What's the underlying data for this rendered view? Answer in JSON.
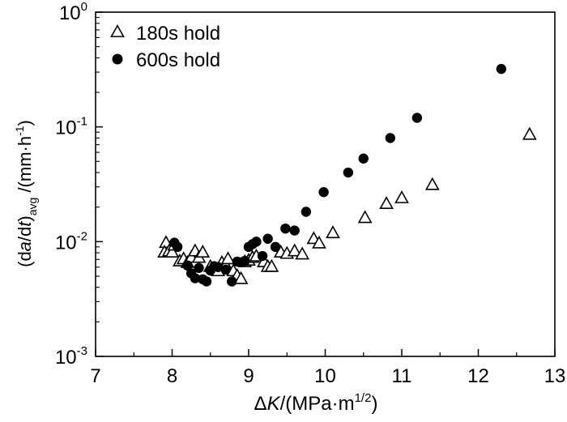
{
  "chart_data": {
    "type": "scatter",
    "x_scale": "linear",
    "y_scale": "log",
    "xlim": [
      7,
      13
    ],
    "ylim": [
      0.001,
      1
    ],
    "x_ticks": [
      7,
      8,
      9,
      10,
      11,
      12,
      13
    ],
    "x_tick_labels": [
      "7",
      "8",
      "9",
      "10",
      "11",
      "12",
      "13"
    ],
    "y_ticks": [
      {
        "value": 1,
        "base": "10",
        "exp": "0"
      },
      {
        "value": 0.1,
        "base": "10",
        "exp": "-1"
      },
      {
        "value": 0.01,
        "base": "10",
        "exp": "-2"
      },
      {
        "value": 0.001,
        "base": "10",
        "exp": "-3"
      }
    ],
    "xlabel": {
      "delta": "Δ",
      "italic": "K",
      "rest": "/(MPa·m",
      "sup": "1/2",
      "close": ")"
    },
    "ylabel": {
      "open": "(d",
      "a": "a",
      "slash": "/d",
      "t": "t",
      "close": ")",
      "sub": "avg",
      "unit": " /(mm·h",
      "sup": "-1",
      "end": ")"
    },
    "legend_position": "top-left",
    "series": [
      {
        "name": "180s hold",
        "marker": "open-triangle",
        "points": [
          [
            7.92,
            0.0097
          ],
          [
            7.9,
            0.008
          ],
          [
            7.96,
            0.0082
          ],
          [
            8.0,
            0.008
          ],
          [
            8.03,
            0.0092
          ],
          [
            8.1,
            0.0067
          ],
          [
            8.15,
            0.007
          ],
          [
            8.2,
            0.0065
          ],
          [
            8.25,
            0.0072
          ],
          [
            8.3,
            0.0082
          ],
          [
            8.35,
            0.0072
          ],
          [
            8.4,
            0.008
          ],
          [
            8.5,
            0.006
          ],
          [
            8.55,
            0.0058
          ],
          [
            8.6,
            0.0055
          ],
          [
            8.65,
            0.0065
          ],
          [
            8.7,
            0.0062
          ],
          [
            8.73,
            0.007
          ],
          [
            8.8,
            0.0055
          ],
          [
            8.85,
            0.005
          ],
          [
            8.9,
            0.0047
          ],
          [
            8.95,
            0.0066
          ],
          [
            9.0,
            0.0068
          ],
          [
            9.05,
            0.0072
          ],
          [
            9.1,
            0.0074
          ],
          [
            9.2,
            0.0066
          ],
          [
            9.25,
            0.006
          ],
          [
            9.3,
            0.006
          ],
          [
            9.42,
            0.008
          ],
          [
            9.5,
            0.0078
          ],
          [
            9.6,
            0.0082
          ],
          [
            9.7,
            0.0077
          ],
          [
            9.85,
            0.0105
          ],
          [
            9.92,
            0.0096
          ],
          [
            10.1,
            0.0118
          ],
          [
            10.52,
            0.016
          ],
          [
            10.8,
            0.0212
          ],
          [
            11.0,
            0.0238
          ],
          [
            11.4,
            0.031
          ],
          [
            12.67,
            0.085
          ]
        ]
      },
      {
        "name": "600s hold",
        "marker": "filled-circle",
        "points": [
          [
            8.03,
            0.0098
          ],
          [
            8.07,
            0.009
          ],
          [
            8.2,
            0.0062
          ],
          [
            8.25,
            0.0053
          ],
          [
            8.3,
            0.0048
          ],
          [
            8.35,
            0.0059
          ],
          [
            8.4,
            0.0047
          ],
          [
            8.45,
            0.0045
          ],
          [
            8.5,
            0.0056
          ],
          [
            8.55,
            0.0061
          ],
          [
            8.6,
            0.006
          ],
          [
            8.7,
            0.0057
          ],
          [
            8.78,
            0.0045
          ],
          [
            8.85,
            0.0067
          ],
          [
            8.9,
            0.0066
          ],
          [
            8.95,
            0.0068
          ],
          [
            9.0,
            0.009
          ],
          [
            9.05,
            0.0095
          ],
          [
            9.1,
            0.01
          ],
          [
            9.18,
            0.0075
          ],
          [
            9.25,
            0.0106
          ],
          [
            9.35,
            0.009
          ],
          [
            9.48,
            0.013
          ],
          [
            9.6,
            0.0125
          ],
          [
            9.75,
            0.0182
          ],
          [
            9.98,
            0.027
          ],
          [
            10.3,
            0.04
          ],
          [
            10.5,
            0.053
          ],
          [
            10.85,
            0.08
          ],
          [
            11.2,
            0.12
          ],
          [
            12.3,
            0.32
          ]
        ]
      }
    ]
  }
}
